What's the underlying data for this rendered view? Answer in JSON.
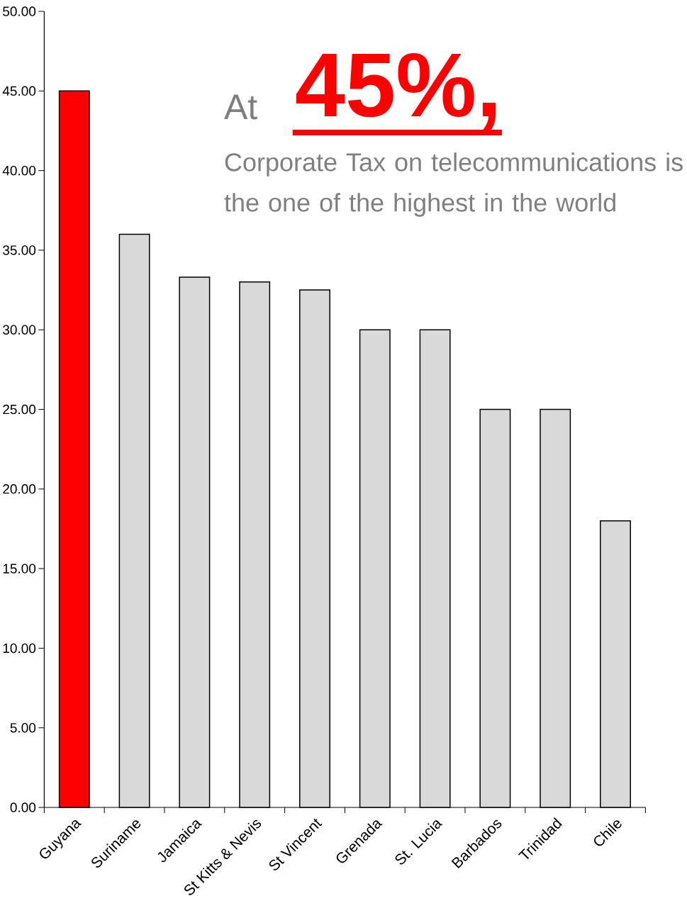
{
  "chart_data": {
    "type": "bar",
    "categories": [
      "Guyana",
      "Suriname",
      "Jamaica",
      "St Kitts & Nevis",
      "St Vincent",
      "Grenada",
      "St. Lucia",
      "Barbados",
      "Trinidad",
      "Chile"
    ],
    "values": [
      45,
      36,
      33.3,
      33,
      32.5,
      30,
      30,
      25,
      25,
      18
    ],
    "colors": [
      "#ff0000",
      "#d9d9d9",
      "#d9d9d9",
      "#d9d9d9",
      "#d9d9d9",
      "#d9d9d9",
      "#d9d9d9",
      "#d9d9d9",
      "#d9d9d9",
      "#d9d9d9"
    ],
    "ylim": [
      0,
      50
    ],
    "yticks": [
      {
        "value": 0,
        "label": "0.00"
      },
      {
        "value": 5,
        "label": "5.00"
      },
      {
        "value": 10,
        "label": "10.00"
      },
      {
        "value": 15,
        "label": "15.00"
      },
      {
        "value": 20,
        "label": "20.00"
      },
      {
        "value": 25,
        "label": "25.00"
      },
      {
        "value": 30,
        "label": "30.00"
      },
      {
        "value": 35,
        "label": "35.00"
      },
      {
        "value": 40,
        "label": "40.00"
      },
      {
        "value": 45,
        "label": "45.00"
      },
      {
        "value": 50,
        "label": "50.00"
      }
    ],
    "grid": false,
    "annotations": [
      "At",
      "45%,",
      "Corporate Tax on telecommunications is the one of the highest in the world"
    ]
  }
}
